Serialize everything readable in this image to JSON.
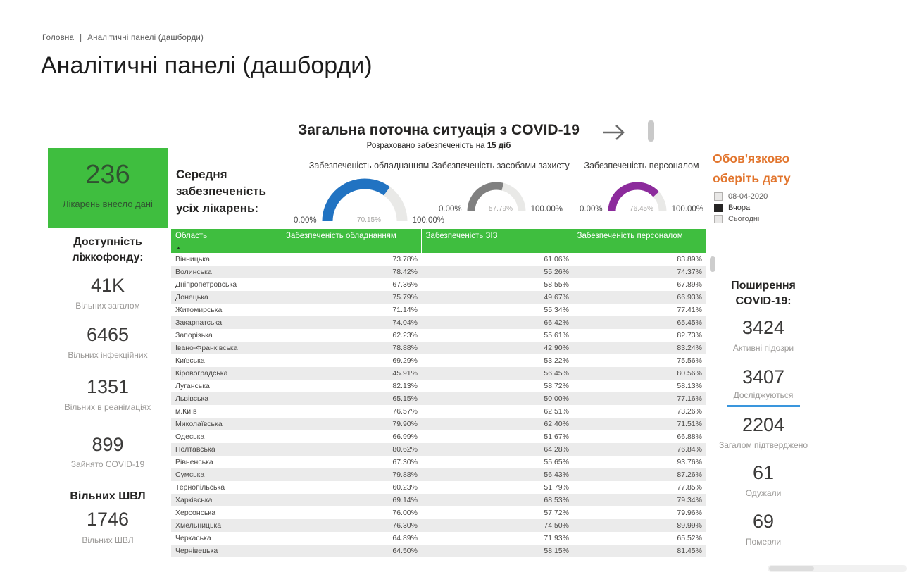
{
  "breadcrumb": {
    "home": "Головна",
    "separator": "|",
    "current": "Аналітичні панелі (дашборди)"
  },
  "page_title": "Аналітичні панелі (дашборди)",
  "dashboard": {
    "title": "Загальна поточна ситуація з COVID-19",
    "subtitle_prefix": "Розраховано забезпеченість на ",
    "subtitle_bold": "15 діб",
    "hospitals_card": {
      "value": "236",
      "label": "Лікарень внесло дані",
      "bg_color": "#3FBE3F"
    },
    "avg_label": "Середня забезпеченість усіх лікарень:",
    "gauges": [
      {
        "title": "Забезпеченість обладнанням",
        "value": 70.15,
        "value_label": "70.15%",
        "min": "0.00%",
        "max": "100.00%",
        "color": "#2173C2",
        "size": "large"
      },
      {
        "title": "Забезпеченість засобами захисту",
        "value": 57.79,
        "value_label": "57.79%",
        "min": "0.00%",
        "max": "100.00%",
        "color": "#808080",
        "size": "small"
      },
      {
        "title": "Забезпеченість персоналом",
        "value": 76.45,
        "value_label": "76.45%",
        "min": "0.00%",
        "max": "100.00%",
        "color": "#8C2B9C",
        "size": "small"
      }
    ]
  },
  "bed_stats": {
    "header": "Доступність ліжкофонду:",
    "items": [
      {
        "value": "41K",
        "label": "Вільних загалом"
      },
      {
        "value": "6465",
        "label": "Вільних інфекційних"
      },
      {
        "value": "1351",
        "label": "Вільних в реанімаціях"
      },
      {
        "value": "899",
        "label": "Зайнято COVID-19"
      }
    ],
    "vent_header": "Вільних ШВЛ",
    "vent": {
      "value": "1746",
      "label": "Вільних ШВЛ"
    }
  },
  "date_filter": {
    "title_line1": "Обов'язково",
    "title_line2": "оберіть дату",
    "options": [
      {
        "label": "08-04-2020",
        "checked": false
      },
      {
        "label": "Вчора",
        "checked": true
      },
      {
        "label": "Сьогодні",
        "checked": false
      }
    ]
  },
  "covid_stats": {
    "header_line1": "Поширення",
    "header_line2": "COVID-19:",
    "items": [
      {
        "value": "3424",
        "label": "Активні підозри",
        "selected": false
      },
      {
        "value": "3407",
        "label": "Досліджуються",
        "selected": true
      },
      {
        "value": "2204",
        "label": "Загалом підтверджено",
        "selected": false
      },
      {
        "value": "61",
        "label": "Одужали",
        "selected": false
      },
      {
        "value": "69",
        "label": "Померли",
        "selected": false
      }
    ],
    "underline_color": "#3a96dd"
  },
  "table": {
    "columns": [
      "Область",
      "Забезпеченість обладнанням",
      "Забезпеченість ЗІЗ",
      "Забезпеченість персоналом"
    ],
    "header_color": "#3FBE3F",
    "rows": [
      [
        "Вінницька",
        "73.78%",
        "61.06%",
        "83.89%"
      ],
      [
        "Волинська",
        "78.42%",
        "55.26%",
        "74.37%"
      ],
      [
        "Дніпропетровська",
        "67.36%",
        "58.55%",
        "67.89%"
      ],
      [
        "Донецька",
        "75.79%",
        "49.67%",
        "66.93%"
      ],
      [
        "Житомирська",
        "71.14%",
        "55.34%",
        "77.41%"
      ],
      [
        "Закарпатська",
        "74.04%",
        "66.42%",
        "65.45%"
      ],
      [
        "Запорізька",
        "62.23%",
        "55.61%",
        "82.73%"
      ],
      [
        "Івано-Франківська",
        "78.88%",
        "42.90%",
        "83.24%"
      ],
      [
        "Київська",
        "69.29%",
        "53.22%",
        "75.56%"
      ],
      [
        "Кіровоградська",
        "45.91%",
        "56.45%",
        "80.56%"
      ],
      [
        "Луганська",
        "82.13%",
        "58.72%",
        "58.13%"
      ],
      [
        "Львівська",
        "65.15%",
        "50.00%",
        "77.16%"
      ],
      [
        "м.Київ",
        "76.57%",
        "62.51%",
        "73.26%"
      ],
      [
        "Миколаївська",
        "79.90%",
        "62.40%",
        "71.51%"
      ],
      [
        "Одеська",
        "66.99%",
        "51.67%",
        "66.88%"
      ],
      [
        "Полтавська",
        "80.62%",
        "64.28%",
        "76.84%"
      ],
      [
        "Рівненська",
        "67.30%",
        "55.65%",
        "93.76%"
      ],
      [
        "Сумська",
        "79.88%",
        "56.43%",
        "87.26%"
      ],
      [
        "Тернопільська",
        "60.23%",
        "51.79%",
        "77.85%"
      ],
      [
        "Харківська",
        "69.14%",
        "68.53%",
        "79.34%"
      ],
      [
        "Херсонська",
        "76.00%",
        "57.72%",
        "79.96%"
      ],
      [
        "Хмельницька",
        "76.30%",
        "74.50%",
        "89.99%"
      ],
      [
        "Черкаська",
        "64.89%",
        "71.93%",
        "65.52%"
      ],
      [
        "Чернівецька",
        "64.50%",
        "58.15%",
        "81.45%"
      ]
    ]
  }
}
